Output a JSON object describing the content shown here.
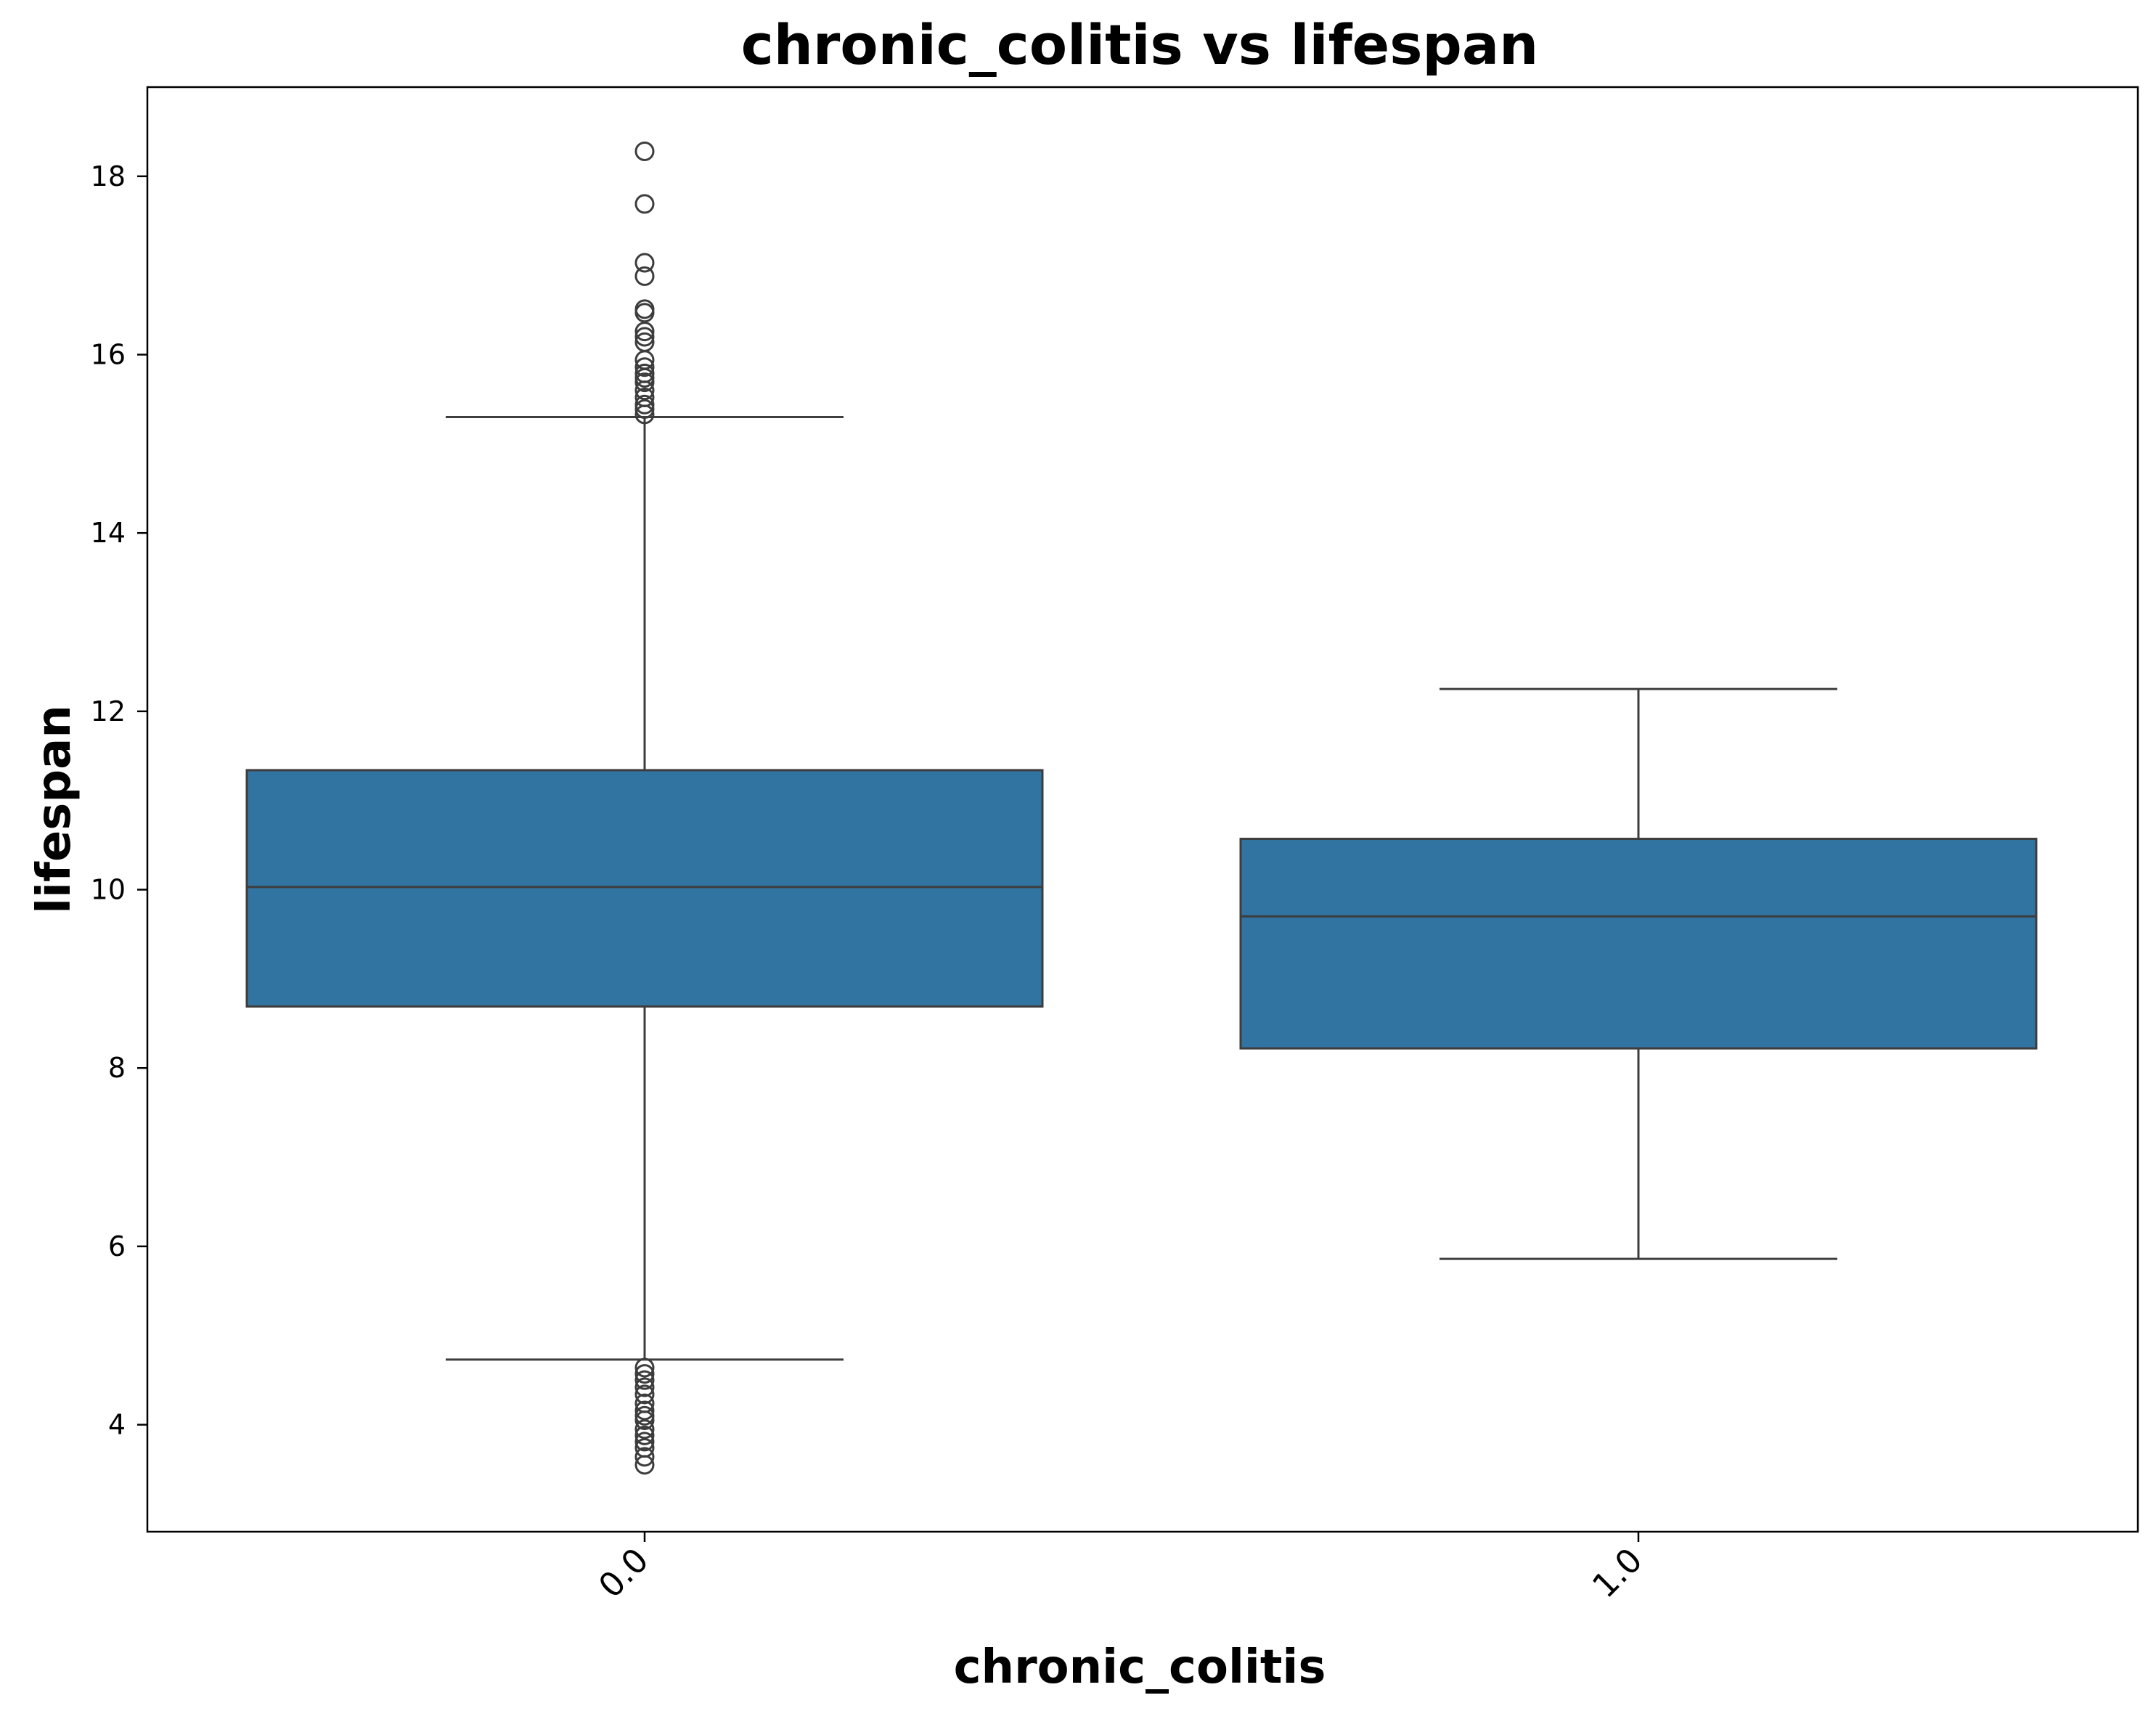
{
  "chart_data": {
    "type": "box",
    "title": "chronic_colitis vs lifespan",
    "xlabel": "chronic_colitis",
    "ylabel": "lifespan",
    "categories": [
      "0.0",
      "1.0"
    ],
    "ylim": [
      2.8,
      19.0
    ],
    "yticks": [
      4,
      6,
      8,
      10,
      12,
      14,
      16,
      18
    ],
    "grid": false,
    "box_color": "#3274a1",
    "line_color": "#3d3d3d",
    "boxes": [
      {
        "category": "0.0",
        "whisker_low": 4.73,
        "q1": 8.69,
        "median": 10.03,
        "q3": 11.34,
        "whisker_high": 15.3,
        "outliers": [
          18.28,
          17.69,
          17.03,
          16.88,
          16.51,
          16.47,
          16.26,
          16.2,
          16.14,
          15.94,
          15.86,
          15.79,
          15.74,
          15.69,
          15.6,
          15.52,
          15.44,
          15.39,
          15.33,
          4.64,
          4.57,
          4.5,
          4.42,
          4.34,
          4.24,
          4.16,
          4.1,
          4.05,
          3.95,
          3.88,
          3.81,
          3.74,
          3.64,
          3.55
        ]
      },
      {
        "category": "1.0",
        "whisker_low": 5.86,
        "q1": 8.22,
        "median": 9.7,
        "q3": 10.57,
        "whisker_high": 12.25,
        "outliers": []
      }
    ]
  }
}
